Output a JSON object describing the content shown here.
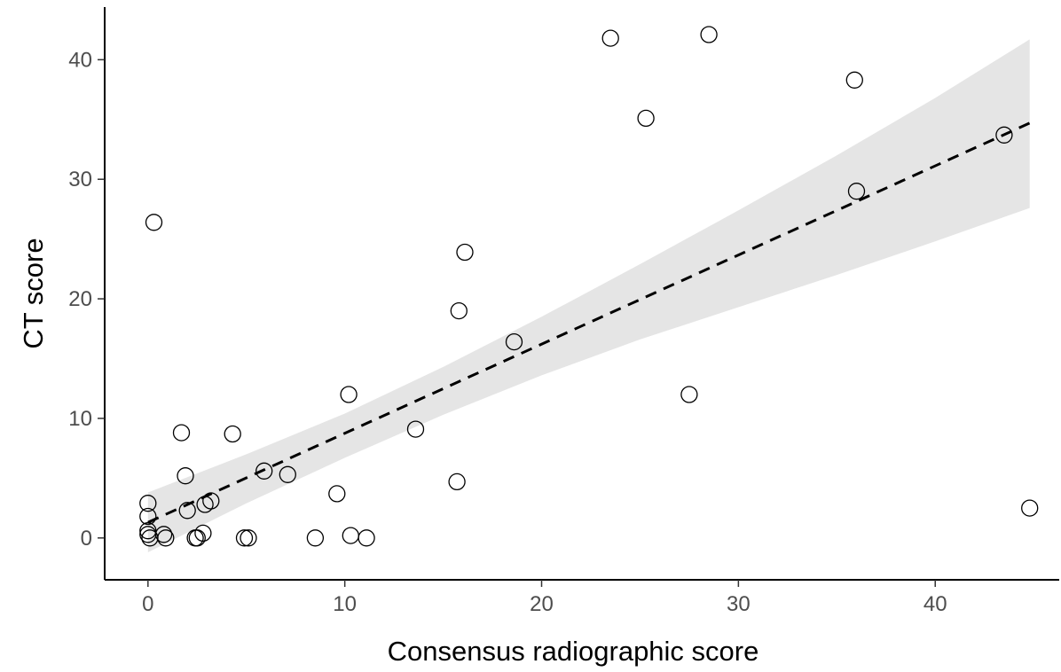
{
  "chart_data": {
    "type": "scatter",
    "xlabel": "Consensus radiographic score",
    "ylabel": "CT score",
    "xlim": [
      -2.2,
      46.3
    ],
    "ylim": [
      -3.5,
      44.4
    ],
    "x_ticks": [
      0,
      10,
      20,
      30,
      40
    ],
    "y_ticks": [
      0,
      10,
      20,
      30,
      40
    ],
    "grid": false,
    "legend": "none",
    "points": [
      {
        "x": 0.0,
        "y": 2.9
      },
      {
        "x": 0.0,
        "y": 1.8
      },
      {
        "x": 0.0,
        "y": 0.6
      },
      {
        "x": 0.0,
        "y": 0.3
      },
      {
        "x": 0.1,
        "y": 0.0
      },
      {
        "x": 0.3,
        "y": 26.4
      },
      {
        "x": 0.8,
        "y": 0.3
      },
      {
        "x": 0.9,
        "y": 0.0
      },
      {
        "x": 1.7,
        "y": 8.8
      },
      {
        "x": 1.9,
        "y": 5.2
      },
      {
        "x": 2.0,
        "y": 2.3
      },
      {
        "x": 2.4,
        "y": 0.0
      },
      {
        "x": 2.5,
        "y": 0.0
      },
      {
        "x": 2.8,
        "y": 0.4
      },
      {
        "x": 2.9,
        "y": 2.8
      },
      {
        "x": 3.2,
        "y": 3.1
      },
      {
        "x": 4.3,
        "y": 8.7
      },
      {
        "x": 4.9,
        "y": 0.0
      },
      {
        "x": 5.1,
        "y": 0.0
      },
      {
        "x": 5.9,
        "y": 5.6
      },
      {
        "x": 7.1,
        "y": 5.3
      },
      {
        "x": 8.5,
        "y": 0.0
      },
      {
        "x": 9.6,
        "y": 3.7
      },
      {
        "x": 10.2,
        "y": 12.0
      },
      {
        "x": 10.3,
        "y": 0.2
      },
      {
        "x": 11.1,
        "y": 0.0
      },
      {
        "x": 13.6,
        "y": 9.1
      },
      {
        "x": 15.7,
        "y": 4.7
      },
      {
        "x": 15.8,
        "y": 19.0
      },
      {
        "x": 16.1,
        "y": 23.9
      },
      {
        "x": 18.6,
        "y": 16.4
      },
      {
        "x": 23.5,
        "y": 41.8
      },
      {
        "x": 25.3,
        "y": 35.1
      },
      {
        "x": 27.5,
        "y": 12.0
      },
      {
        "x": 28.5,
        "y": 42.1
      },
      {
        "x": 35.9,
        "y": 38.3
      },
      {
        "x": 36.0,
        "y": 29.0
      },
      {
        "x": 43.5,
        "y": 33.7
      },
      {
        "x": 44.8,
        "y": 2.5
      }
    ],
    "fit_line": {
      "style": "dashed",
      "x": [
        0,
        44.8
      ],
      "y": [
        1.3,
        34.7
      ]
    },
    "confidence_band": {
      "x": [
        0,
        5,
        10,
        15,
        20,
        25,
        30,
        35,
        40,
        44.8
      ],
      "lower": [
        -1.2,
        2.9,
        6.7,
        10.3,
        13.6,
        16.6,
        19.3,
        22.0,
        24.8,
        27.6
      ],
      "upper": [
        3.8,
        7.0,
        10.4,
        14.3,
        18.5,
        22.9,
        27.4,
        32.0,
        36.8,
        41.7
      ],
      "color": "#e5e5e5"
    }
  }
}
